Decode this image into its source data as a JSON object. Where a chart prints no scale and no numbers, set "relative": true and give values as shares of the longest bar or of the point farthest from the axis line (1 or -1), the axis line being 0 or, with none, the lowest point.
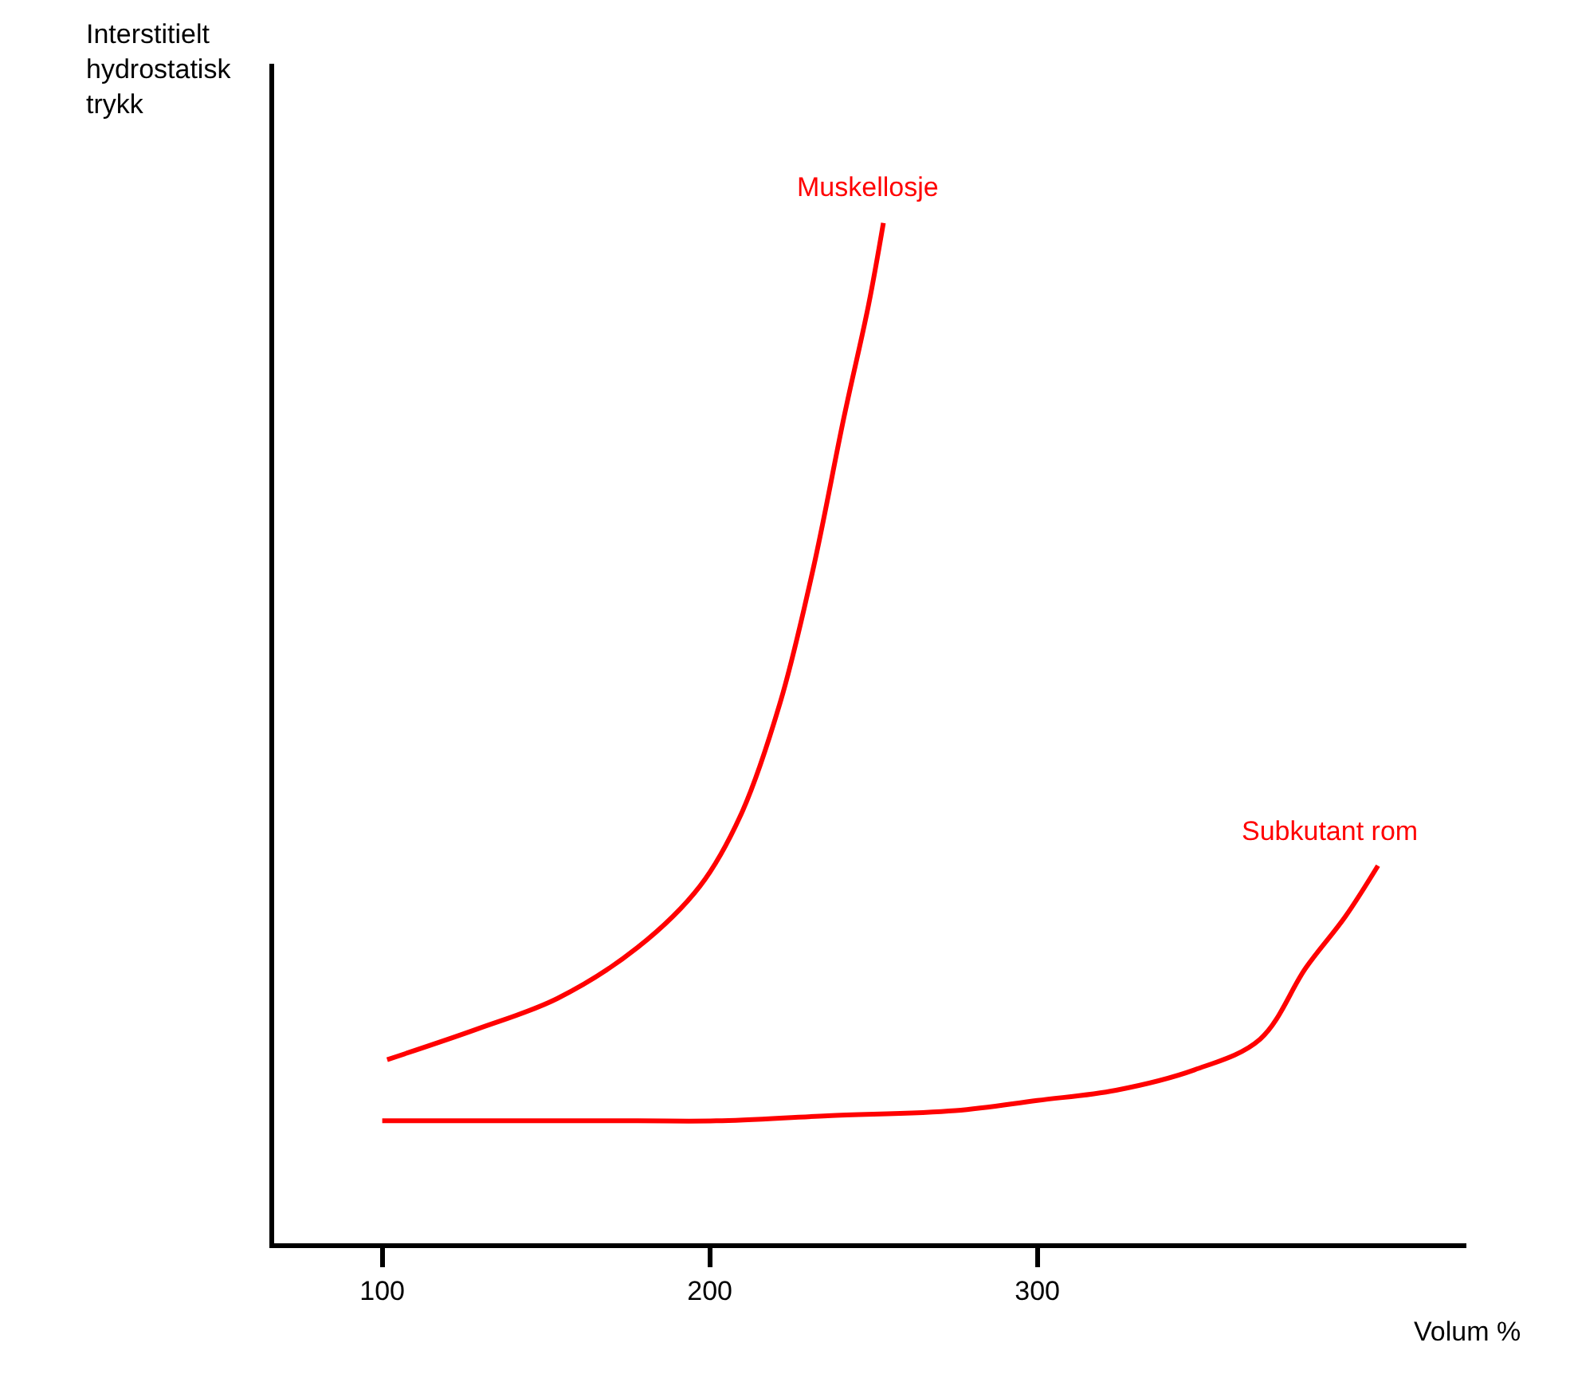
{
  "chart_data": {
    "type": "line",
    "xlabel": "Volum %",
    "ylabel": "Interstitielt\nhydrostatisk\ntrykk",
    "relative": true,
    "xlim": [
      67,
      431
    ],
    "xticks": [
      100,
      200,
      300
    ],
    "legend": false,
    "marker": "none",
    "line_style": "solid",
    "series": [
      {
        "name": "Muskellosje",
        "color": "#ff0000",
        "x": [
          101.5,
          129,
          153.5,
          178,
          197,
          209.5,
          221.5,
          231.5,
          241,
          248.5,
          253
        ],
        "values": [
          0.18,
          0.21,
          0.24,
          0.29,
          0.35,
          0.42,
          0.53,
          0.66,
          0.81,
          0.92,
          1
        ]
      },
      {
        "name": "Subkutant rom",
        "color": "#ff0000",
        "x": [
          100,
          129,
          178,
          202,
          236,
          275,
          300,
          324,
          348,
          368,
          382,
          394,
          404
        ],
        "values": [
          0.12,
          0.12,
          0.12,
          0.12,
          0.125,
          0.13,
          0.14,
          0.15,
          0.17,
          0.2,
          0.27,
          0.32,
          0.37
        ]
      }
    ]
  }
}
